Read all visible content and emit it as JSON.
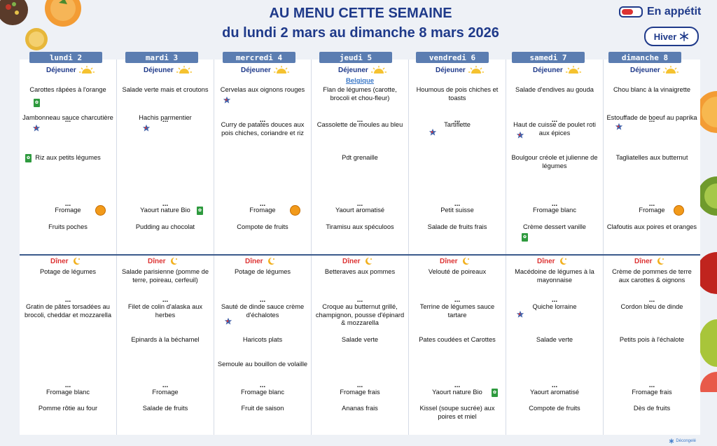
{
  "header": {
    "title": "AU MENU CETTE SEMAINE",
    "subtitle": "du lundi 2 mars au dimanche 8 mars  2026",
    "brand": "En appétit",
    "season": "Hiver",
    "footer_logo": "Décongelé"
  },
  "labels": {
    "lunch": "Déjeuner",
    "dinner": "Dîner",
    "dots": "..."
  },
  "colors": {
    "title": "#1f3a8a",
    "dinner": "#d33333",
    "header_bar": "#5b7db1"
  },
  "icons": {
    "lunch": "sun-icon",
    "dinner": "moon-icon",
    "bio": "organic-label-icon",
    "aop": "aop-label-icon",
    "chef": "chef-star-icon",
    "season": "snowflake-icon"
  },
  "days": [
    {
      "name": "lundi 2",
      "lunch": [
        "Carottes râpées à l'orange",
        "Jambonneau sauce charcutière",
        "Riz aux petits légumes",
        "Fromage",
        "Fruits poches"
      ],
      "dinner": [
        "Potage de légumes",
        "Gratin de pâtes torsadées au brocoli, cheddar et mozzarella",
        "Fromage blanc",
        "Pomme rôtie au four"
      ]
    },
    {
      "name": "mardi 3",
      "lunch": [
        "Salade verte mais et croutons",
        "Hachis parmentier",
        "Yaourt nature Bio",
        "Pudding au chocolat"
      ],
      "dinner": [
        "Salade parisienne (pomme de terre, poireau, cerfeuil)",
        "Filet de colin d'alaska aux herbes",
        "Epinards à la béchamel",
        "Fromage",
        "Salade de fruits"
      ]
    },
    {
      "name": "mercredi 4",
      "lunch": [
        "Cervelas aux oignons rouges",
        "Curry de patates douces aux pois chiches, coriandre et riz",
        "Fromage",
        "Compote de fruits"
      ],
      "dinner": [
        "Potage de légumes",
        "Sauté de dinde sauce crème d'échalotes",
        "Haricots plats",
        "Semoule au bouillon de volaille",
        "Fromage blanc",
        "Fruit de saison"
      ]
    },
    {
      "name": "jeudi 5",
      "note": "Belgique",
      "lunch": [
        "Flan de légumes  (carotte, brocoli et chou-fleur)",
        "Cassolette de moules au bleu",
        "Pdt grenaille",
        "Yaourt aromatisé",
        "Tiramisu aux spéculoos"
      ],
      "dinner": [
        "Betteraves aux pommes",
        "Croque au butternut grillé, champignon, pousse d'épinard & mozzarella",
        "Salade verte",
        "Fromage frais",
        "Ananas frais"
      ]
    },
    {
      "name": "vendredi 6",
      "lunch": [
        "Houmous de pois chiches et toasts",
        "Tartiflette",
        "Petit suisse",
        "Salade de fruits frais"
      ],
      "dinner": [
        "Velouté de poireaux",
        "Terrine de légumes sauce tartare",
        "Pates coudées et Carottes",
        "Yaourt nature Bio",
        "Kissel (soupe sucrée) aux poires et miel"
      ]
    },
    {
      "name": "samedi 7",
      "lunch": [
        "Salade d'endives au gouda",
        "Haut de cuisse de poulet roti aux épices",
        "Boulgour créole et julienne de légumes",
        "Fromage blanc",
        "Crème dessert vanille"
      ],
      "dinner": [
        "Macédoine de légumes à la mayonnaise",
        "Quiche lorraine",
        "Salade verte",
        "Yaourt aromatisé",
        "Compote de fruits"
      ]
    },
    {
      "name": "dimanche 8",
      "lunch": [
        "Chou blanc à la vinaigrette",
        "Estouffade de boeuf au paprika",
        "Tagliatelles aux butternut",
        "Fromage",
        "Clafoutis aux poires et oranges"
      ],
      "dinner": [
        "Crème de pommes de terre aux carottes & oignons",
        "Cordon bleu de dinde",
        "Petits pois à l'échalote",
        "Fromage frais",
        "Dès de fruits"
      ]
    }
  ]
}
